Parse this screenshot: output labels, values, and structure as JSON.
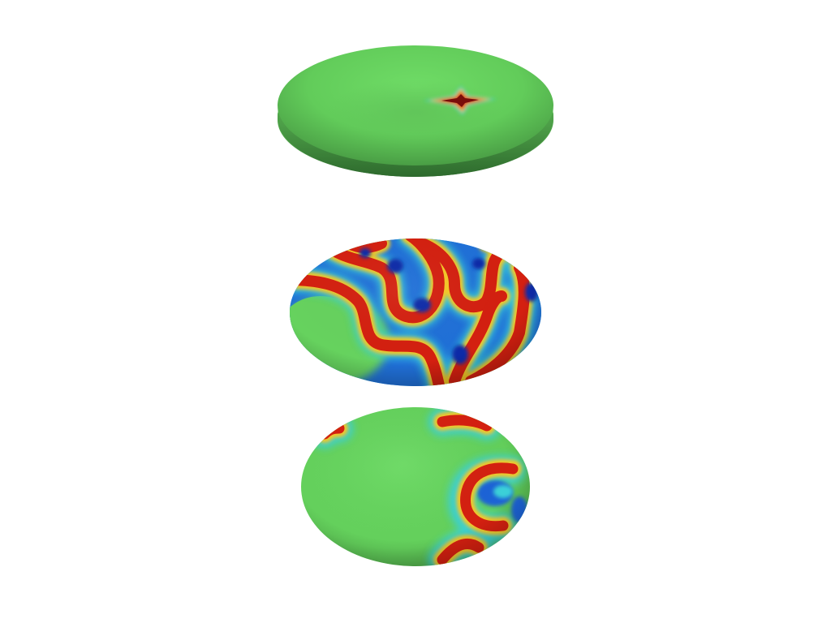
{
  "scene": {
    "background": "#ffffff",
    "base_green": "#66d25e",
    "shade_green": "#3d8a3a",
    "palette": {
      "blue_dark": "#0a2aa8",
      "blue": "#1e63d6",
      "cyan": "#3ad0d8",
      "yellow": "#f4c826",
      "orange": "#f06a12",
      "red": "#d42010",
      "red_dark": "#7a0d0a"
    }
  },
  "shapes": [
    {
      "name": "flat-disc-top",
      "pattern": "single-cross-spot"
    },
    {
      "name": "ellipsoid-middle",
      "pattern": "labyrinth-stripes"
    },
    {
      "name": "ellipsoid-bottom",
      "pattern": "partial-stripes-right"
    }
  ]
}
